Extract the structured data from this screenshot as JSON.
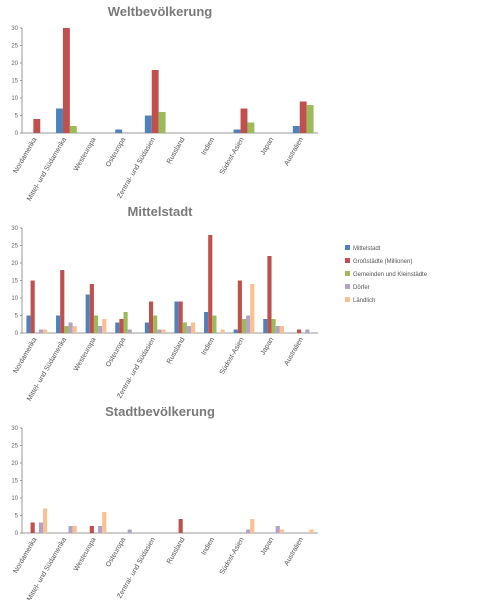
{
  "chart_data": [
    {
      "type": "bar",
      "title": "Weltbevölkerung",
      "categories": [
        "Nordamerika",
        "Mittel- und Südamerika",
        "Westeuropa",
        "Osteuropa",
        "Zentral- und Südasien",
        "Russland",
        "Indien",
        "Südost-Asien",
        "Japan",
        "Australien"
      ],
      "ylim": [
        0,
        30
      ],
      "yticks": [
        0,
        5,
        10,
        15,
        20,
        25,
        30
      ],
      "series": [
        {
          "name": "Mittelstadt",
          "color": "#4f81bd",
          "values": [
            0,
            7,
            0,
            1,
            5,
            0,
            0,
            1,
            0,
            2
          ]
        },
        {
          "name": "Großstädte (Millionen)",
          "color": "#c0504d",
          "values": [
            4,
            30,
            0,
            0,
            18,
            0,
            0,
            7,
            0,
            9
          ]
        },
        {
          "name": "Gemeinden und Kleinstädte",
          "color": "#9bbb59",
          "values": [
            0,
            2,
            0,
            0,
            6,
            0,
            0,
            3,
            0,
            8
          ]
        }
      ]
    },
    {
      "type": "bar",
      "title": "Mittelstadt",
      "categories": [
        "Nordamerika",
        "Mittel- und Südamerika",
        "Westeuropa",
        "Osteuropa",
        "Zentral- und Südasien",
        "Russland",
        "Indien",
        "Südost-Asien",
        "Japan",
        "Australien"
      ],
      "ylim": [
        0,
        30
      ],
      "yticks": [
        0,
        5,
        10,
        15,
        20,
        25,
        30
      ],
      "legend": "right",
      "series": [
        {
          "name": "Mittelstadt",
          "color": "#4f81bd",
          "values": [
            5,
            5,
            11,
            3,
            3,
            9,
            6,
            1,
            4,
            0
          ]
        },
        {
          "name": "Großstädte (Millionen)",
          "color": "#c0504d",
          "values": [
            15,
            18,
            14,
            4,
            9,
            9,
            28,
            15,
            22,
            1
          ]
        },
        {
          "name": "Gemeinden und Kleinstädte",
          "color": "#9bbb59",
          "values": [
            0,
            2,
            5,
            6,
            5,
            3,
            5,
            4,
            4,
            0
          ]
        },
        {
          "name": "Dörfer",
          "color": "#b3a2c7",
          "values": [
            1,
            3,
            2,
            1,
            1,
            2,
            0,
            5,
            2,
            1
          ]
        },
        {
          "name": "Ländlich",
          "color": "#fac090",
          "values": [
            1,
            2,
            4,
            0,
            1,
            3,
            1,
            14,
            2,
            0
          ]
        }
      ]
    },
    {
      "type": "bar",
      "title": "Stadtbevölkerung",
      "categories": [
        "Nordamerika",
        "Mittel- und Südamerika",
        "Westeuropa",
        "Osteuropa",
        "Zentral- und Südasien",
        "Russland",
        "Indien",
        "Südost-Asien",
        "Japan",
        "Australien"
      ],
      "ylim": [
        0,
        30
      ],
      "yticks": [
        0,
        5,
        10,
        15,
        20,
        25,
        30
      ],
      "series": [
        {
          "name": "Mittelstadt",
          "color": "#4f81bd",
          "values": [
            0,
            0,
            0,
            0,
            0,
            0,
            0,
            0,
            0,
            0
          ]
        },
        {
          "name": "Großstädte (Millionen)",
          "color": "#c0504d",
          "values": [
            3,
            0,
            2,
            0,
            0,
            4,
            0,
            0,
            0,
            0
          ]
        },
        {
          "name": "Gemeinden und Kleinstädte",
          "color": "#9bbb59",
          "values": [
            0,
            0,
            0,
            0,
            0,
            0,
            0,
            0,
            0,
            0
          ]
        },
        {
          "name": "Dörfer",
          "color": "#b3a2c7",
          "values": [
            3,
            2,
            2,
            1,
            0,
            0,
            0,
            1,
            2,
            0
          ]
        },
        {
          "name": "Ländlich",
          "color": "#fac090",
          "values": [
            7,
            2,
            6,
            0,
            0,
            0,
            0,
            4,
            1,
            1
          ]
        }
      ]
    }
  ]
}
